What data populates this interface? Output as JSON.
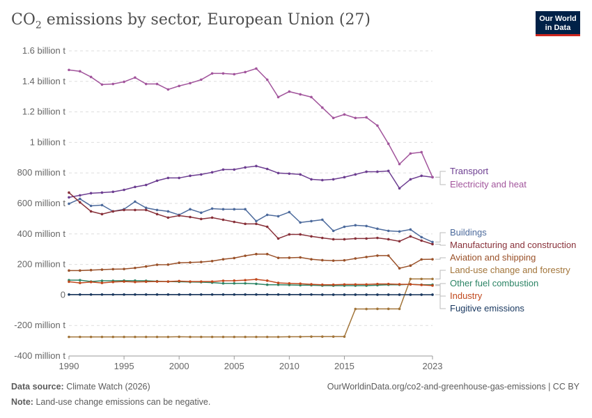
{
  "title": "CO₂ emissions by sector, European Union (27)",
  "title_parts": {
    "pre": "CO",
    "sub": "2",
    "post": " emissions by sector, European Union (27)"
  },
  "logo": {
    "line1": "Our World",
    "line2": "in Data"
  },
  "footer": {
    "source_label": "Data source:",
    "source": "Climate Watch (2026)",
    "url": "OurWorldinData.org/co2-and-greenhouse-gas-emissions | CC BY",
    "note_label": "Note:",
    "note": "Land-use change emissions can be negative."
  },
  "chart_data": {
    "type": "line",
    "x_ticks": [
      1990,
      1995,
      2000,
      2005,
      2010,
      2015,
      2023
    ],
    "x_tick_labels": [
      "1990",
      "1995",
      "2000",
      "2005",
      "2010",
      "2015",
      "2023"
    ],
    "y_ticks": [
      -400,
      -200,
      0,
      200,
      400,
      600,
      800,
      1000,
      1200,
      1400,
      1600
    ],
    "y_tick_labels": [
      "-400 million t",
      "-200 million t",
      "0",
      "200 million t",
      "400 million t",
      "600 million t",
      "800 million t",
      "1 billion t",
      "1.2 billion t",
      "1.4 billion t",
      "1.6 billion t"
    ],
    "ylim": [
      -400,
      1600
    ],
    "xlim": [
      1990,
      2023
    ],
    "y_unit": "million t",
    "grid": "horizontal dashed",
    "legend": "right, inline labels",
    "x": [
      1990,
      1991,
      1992,
      1993,
      1994,
      1995,
      1996,
      1997,
      1998,
      1999,
      2000,
      2001,
      2002,
      2003,
      2004,
      2005,
      2006,
      2007,
      2008,
      2009,
      2010,
      2011,
      2012,
      2013,
      2014,
      2015,
      2016,
      2017,
      2018,
      2019,
      2020,
      2021,
      2022,
      2023
    ],
    "series": [
      {
        "name": "Transport",
        "color": "#6d3e91",
        "values": [
          640,
          653,
          667,
          671,
          676,
          689,
          708,
          721,
          749,
          767,
          767,
          781,
          790,
          804,
          822,
          822,
          836,
          845,
          826,
          799,
          795,
          790,
          758,
          753,
          758,
          772,
          790,
          808,
          808,
          813,
          699,
          758,
          781,
          772
        ]
      },
      {
        "name": "Electricity and heat",
        "color": "#a2559c",
        "values": [
          1475,
          1466,
          1429,
          1379,
          1383,
          1397,
          1425,
          1383,
          1383,
          1347,
          1370,
          1388,
          1411,
          1452,
          1452,
          1447,
          1461,
          1484,
          1411,
          1297,
          1333,
          1315,
          1297,
          1228,
          1160,
          1183,
          1160,
          1164,
          1110,
          991,
          858,
          927,
          936,
          772
        ]
      },
      {
        "name": "Buildings",
        "color": "#4c6a9c",
        "values": [
          598,
          630,
          584,
          589,
          548,
          562,
          612,
          571,
          557,
          548,
          525,
          562,
          539,
          566,
          562,
          562,
          562,
          484,
          525,
          516,
          543,
          475,
          484,
          493,
          420,
          447,
          457,
          452,
          434,
          420,
          416,
          429,
          379,
          347
        ]
      },
      {
        "name": "Manufacturing and construction",
        "color": "#883039",
        "values": [
          671,
          607,
          548,
          530,
          548,
          557,
          557,
          557,
          530,
          507,
          520,
          511,
          498,
          507,
          493,
          479,
          466,
          466,
          447,
          370,
          397,
          397,
          384,
          374,
          365,
          365,
          370,
          370,
          374,
          365,
          352,
          384,
          356,
          333
        ]
      },
      {
        "name": "Aviation and shipping",
        "color": "#9a5129",
        "values": [
          160,
          160,
          163,
          166,
          169,
          170,
          177,
          187,
          198,
          199,
          211,
          213,
          216,
          222,
          234,
          242,
          257,
          268,
          268,
          243,
          244,
          246,
          234,
          228,
          225,
          227,
          239,
          249,
          258,
          258,
          175,
          192,
          233,
          234
        ]
      },
      {
        "name": "Land-use change and forestry",
        "color": "#a2753a",
        "values": [
          -275,
          -275,
          -275,
          -275,
          -275,
          -275,
          -275,
          -275,
          -275,
          -275,
          -274,
          -275,
          -275,
          -275,
          -275,
          -275,
          -275,
          -275,
          -275,
          -275,
          -274,
          -274,
          -273,
          -273,
          -273,
          -273,
          -92,
          -92,
          -91,
          -91,
          -91,
          105,
          105,
          105
        ]
      },
      {
        "name": "Other fuel combustion",
        "color": "#2c8465",
        "values": [
          97,
          97,
          88,
          93,
          93,
          94,
          94,
          93,
          90,
          88,
          87,
          85,
          84,
          81,
          76,
          76,
          76,
          73,
          67,
          67,
          66,
          64,
          64,
          62,
          61,
          61,
          61,
          61,
          64,
          67,
          67,
          70,
          67,
          67
        ]
      },
      {
        "name": "Industry",
        "color": "#c0481d",
        "values": [
          87,
          79,
          85,
          79,
          85,
          88,
          85,
          87,
          88,
          88,
          91,
          88,
          88,
          88,
          93,
          94,
          97,
          102,
          94,
          79,
          76,
          74,
          70,
          67,
          67,
          69,
          69,
          69,
          72,
          72,
          70,
          70,
          66,
          62
        ]
      },
      {
        "name": "Fugitive emissions",
        "color": "#18375f",
        "values": [
          3,
          3,
          3,
          3,
          3,
          3,
          3,
          3,
          3,
          3,
          3,
          3,
          3,
          3,
          3,
          3,
          3,
          3,
          3,
          3,
          3,
          3,
          3,
          2,
          2,
          2,
          2,
          2,
          2,
          2,
          2,
          2,
          2,
          2
        ]
      }
    ]
  }
}
